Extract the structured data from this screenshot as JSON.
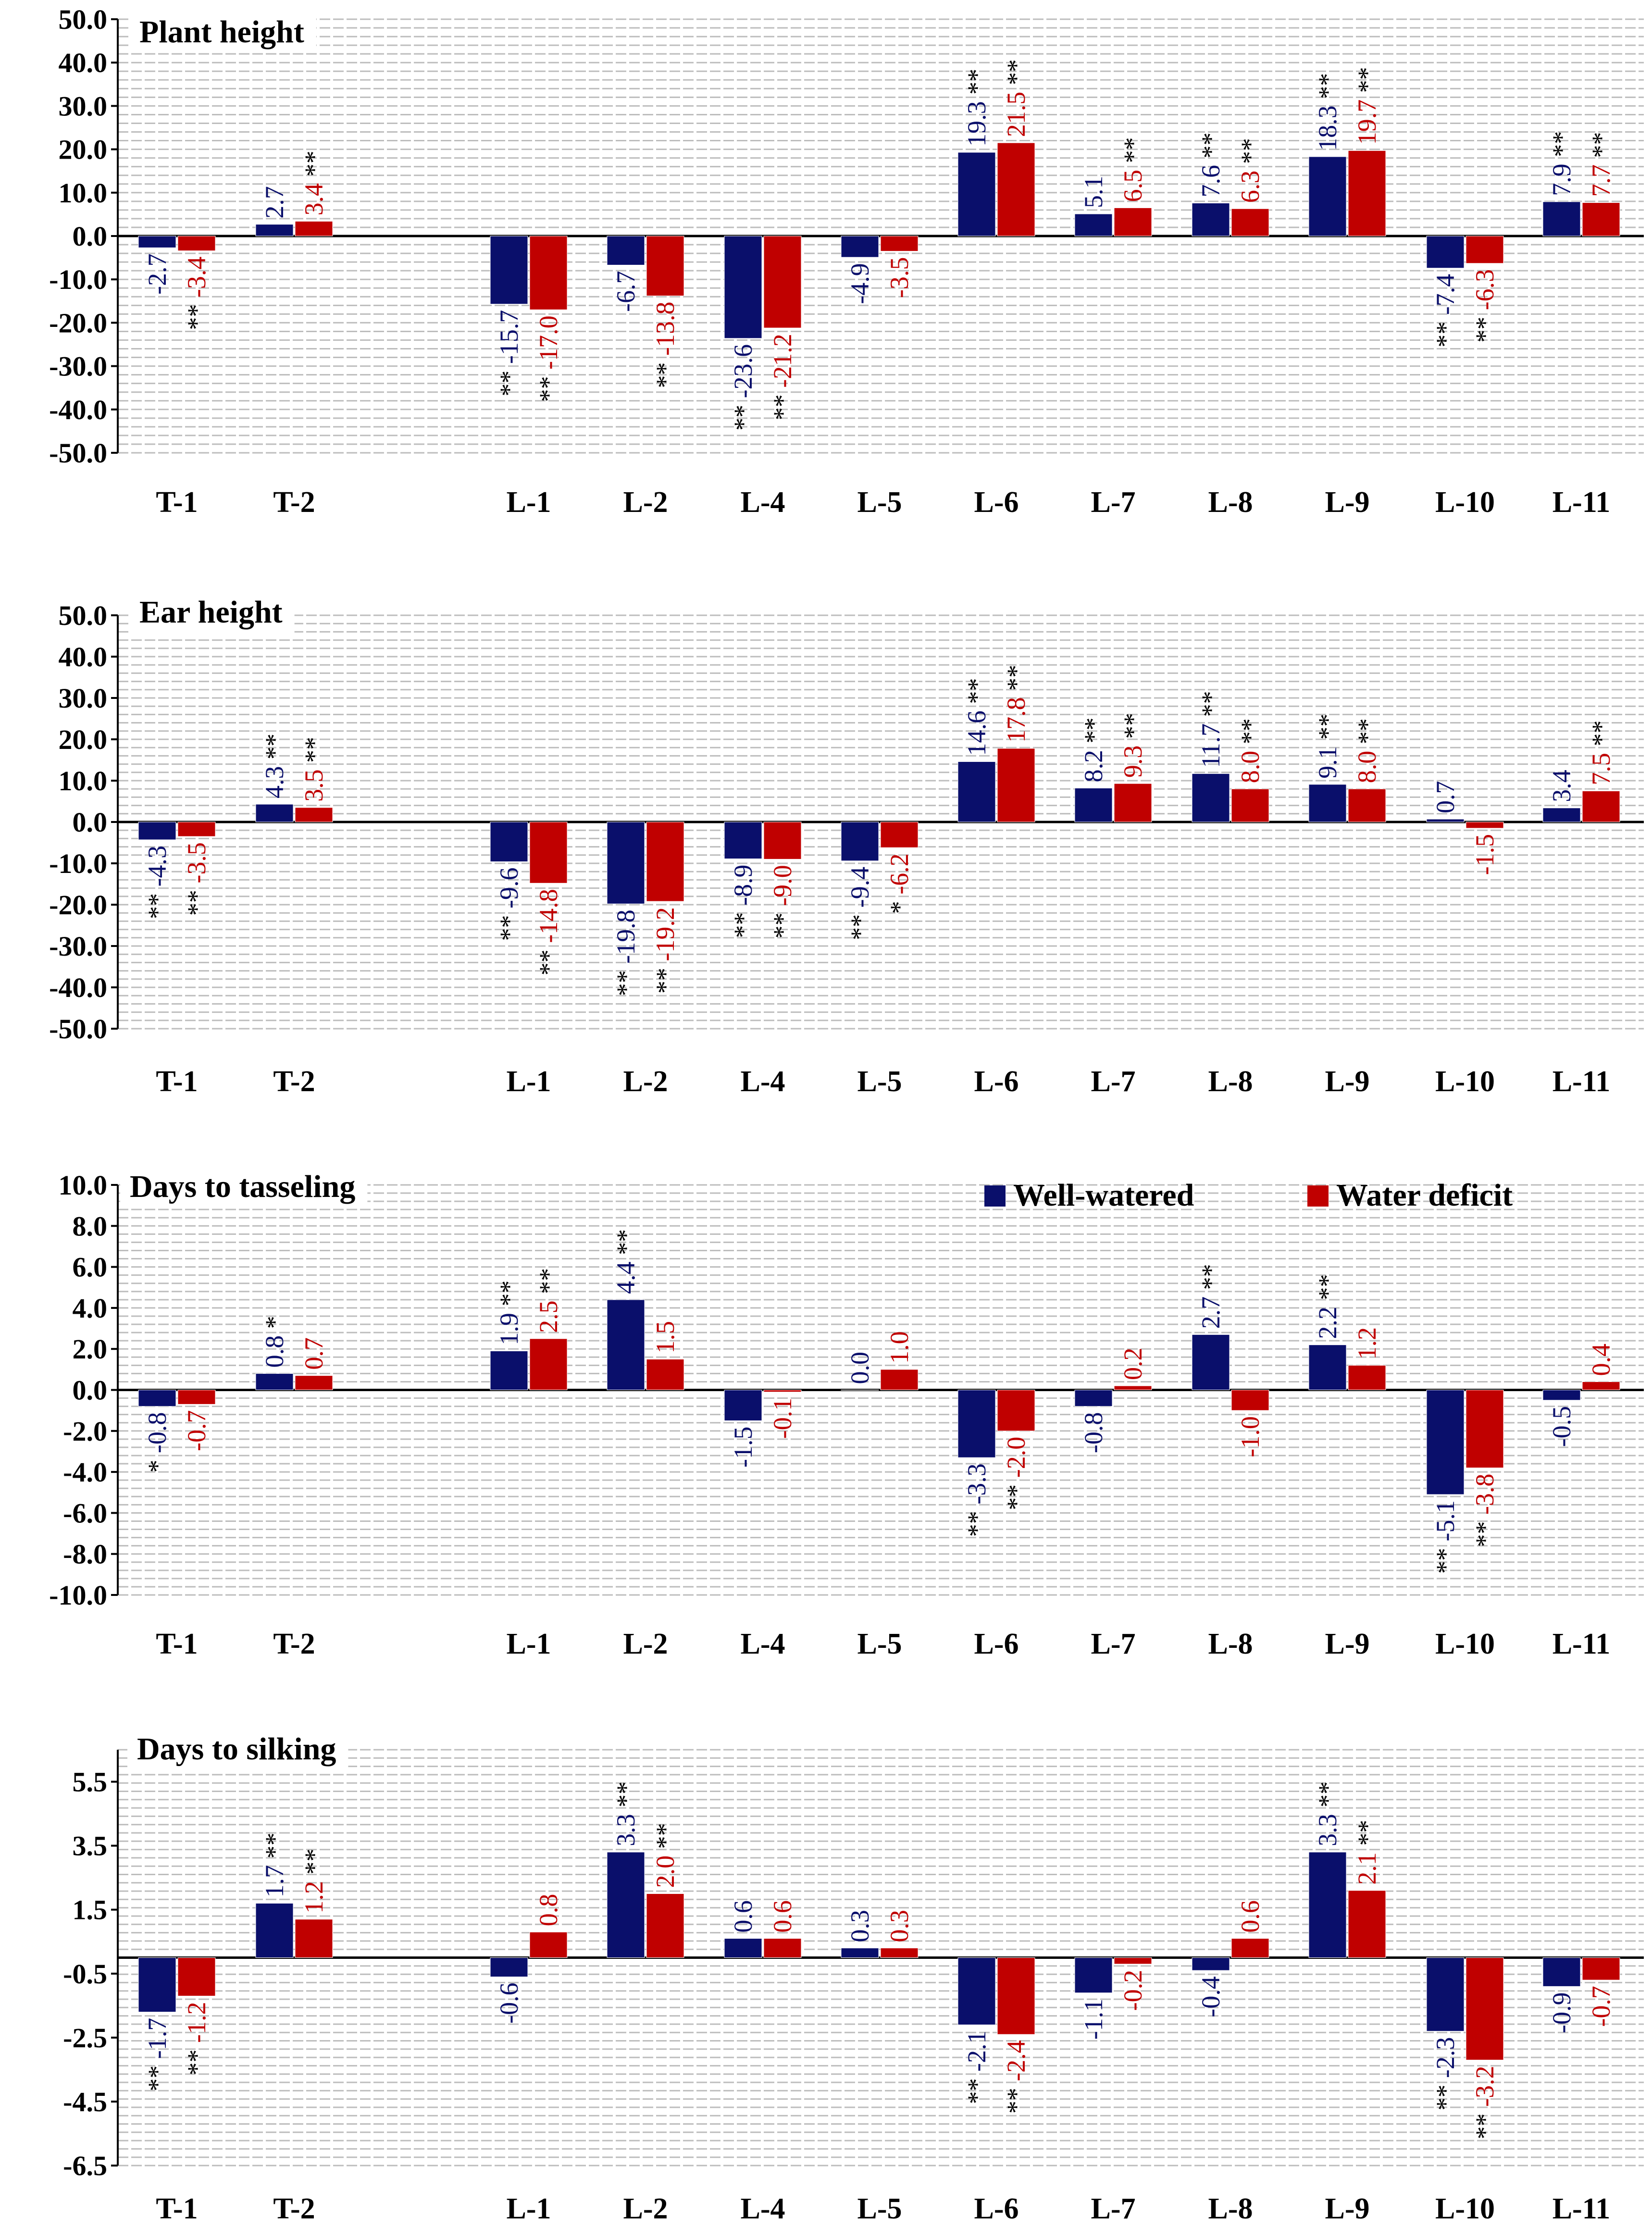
{
  "colors": {
    "well": "#0a0f6b",
    "deficit": "#c00000",
    "grid": "#bdbdbd",
    "axis": "#000000"
  },
  "legend": {
    "well_label": "Well-watered",
    "deficit_label": "Water deficit"
  },
  "chart_data": [
    {
      "type": "bar",
      "title": "Plant height",
      "categories": [
        "T-1",
        "T-2",
        "",
        "L-1",
        "L-2",
        "L-4",
        "L-5",
        "L-6",
        "L-7",
        "L-8",
        "L-9",
        "L-10",
        "L-11"
      ],
      "ylim": [
        -50,
        50
      ],
      "yticks": [
        50,
        40,
        30,
        20,
        10,
        0,
        -10,
        -20,
        -30,
        -40,
        -50
      ],
      "ytick_labels": [
        "50.0",
        "40.0",
        "30.0",
        "20.0",
        "10.0",
        "0.0",
        "-10.0",
        "-20.0",
        "-30.0",
        "-40.0",
        "-50.0"
      ],
      "series": [
        {
          "name": "Well-watered",
          "values": [
            -2.7,
            2.7,
            null,
            -15.7,
            -6.7,
            -23.6,
            -4.9,
            19.3,
            5.1,
            7.6,
            18.3,
            -7.4,
            7.9
          ],
          "labels": [
            "-2.7",
            "2.7",
            "",
            "-15.7",
            "-6.7",
            "-23.6",
            "-4.9",
            "19.3",
            "5.1",
            "7.6",
            "18.3",
            "-7.4",
            "7.9"
          ],
          "sig": [
            "",
            "",
            "",
            "**",
            "",
            "**",
            "",
            "**",
            "",
            "**",
            "**",
            "**",
            "**"
          ]
        },
        {
          "name": "Water deficit",
          "values": [
            -3.4,
            3.4,
            null,
            -17.0,
            -13.8,
            -21.2,
            -3.5,
            21.5,
            6.5,
            6.3,
            19.7,
            -6.3,
            7.7
          ],
          "labels": [
            "-3.4",
            "3.4",
            "",
            "-17.0",
            "-13.8",
            "-21.2",
            "-3.5",
            "21.5",
            "6.5",
            "6.3",
            "19.7",
            "-6.3",
            "7.7"
          ],
          "sig": [
            "**",
            "**",
            "",
            "**",
            "**",
            "**",
            "",
            "**",
            "**",
            "**",
            "**",
            "**",
            "**"
          ]
        }
      ]
    },
    {
      "type": "bar",
      "title": "Ear height",
      "categories": [
        "T-1",
        "T-2",
        "",
        "L-1",
        "L-2",
        "L-4",
        "L-5",
        "L-6",
        "L-7",
        "L-8",
        "L-9",
        "L-10",
        "L-11"
      ],
      "ylim": [
        -50,
        50
      ],
      "yticks": [
        50,
        40,
        30,
        20,
        10,
        0,
        -10,
        -20,
        -30,
        -40,
        -50
      ],
      "ytick_labels": [
        "50.0",
        "40.0",
        "30.0",
        "20.0",
        "10.0",
        "0.0",
        "-10.0",
        "-20.0",
        "-30.0",
        "-40.0",
        "-50.0"
      ],
      "series": [
        {
          "name": "Well-watered",
          "values": [
            -4.3,
            4.3,
            null,
            -9.6,
            -19.8,
            -8.9,
            -9.4,
            14.6,
            8.2,
            11.7,
            9.1,
            0.7,
            3.4
          ],
          "labels": [
            "-4.3",
            "4.3",
            "",
            "-9.6",
            "-19.8",
            "-8.9",
            "-9.4",
            "14.6",
            "8.2",
            "11.7",
            "9.1",
            "0.7",
            "3.4"
          ],
          "sig": [
            "**",
            "**",
            "",
            "**",
            "**",
            "**",
            "**",
            "**",
            "**",
            "**",
            "**",
            "",
            ""
          ]
        },
        {
          "name": "Water deficit",
          "values": [
            -3.5,
            3.5,
            null,
            -14.8,
            -19.2,
            -9.0,
            -6.2,
            17.8,
            9.3,
            8.0,
            8.0,
            -1.5,
            7.5
          ],
          "labels": [
            "-3.5",
            "3.5",
            "",
            "-14.8",
            "-19.2",
            "-9.0",
            "-6.2",
            "17.8",
            "9.3",
            "8.0",
            "8.0",
            "-1.5",
            "7.5"
          ],
          "sig": [
            "**",
            "**",
            "",
            "**",
            "**",
            "**",
            "*",
            "**",
            "**",
            "**",
            "**",
            "",
            "**"
          ]
        }
      ]
    },
    {
      "type": "bar",
      "title": "Days to tasseling",
      "categories": [
        "T-1",
        "T-2",
        "",
        "L-1",
        "L-2",
        "L-4",
        "L-5",
        "L-6",
        "L-7",
        "L-8",
        "L-9",
        "L-10",
        "L-11"
      ],
      "ylim": [
        -10,
        10
      ],
      "yticks": [
        10,
        8,
        6,
        4,
        2,
        0,
        -2,
        -4,
        -6,
        -8,
        -10
      ],
      "ytick_labels": [
        "10.0",
        "8.0",
        "6.0",
        "4.0",
        "2.0",
        "0.0",
        "-2.0",
        "-4.0",
        "-6.0",
        "-8.0",
        "-10.0"
      ],
      "legend": true,
      "series": [
        {
          "name": "Well-watered",
          "values": [
            -0.8,
            0.8,
            null,
            1.9,
            4.4,
            -1.5,
            0.0,
            -3.3,
            -0.8,
            2.7,
            2.2,
            -5.1,
            -0.5
          ],
          "labels": [
            "-0.8",
            "0.8",
            "",
            "1.9",
            "4.4",
            "-1.5",
            "0.0",
            "-3.3",
            "-0.8",
            "2.7",
            "2.2",
            "-5.1",
            "-0.5"
          ],
          "sig": [
            "*",
            "*",
            "",
            "**",
            "**",
            "",
            "",
            "**",
            "",
            "**",
            "**",
            "**",
            ""
          ]
        },
        {
          "name": "Water deficit",
          "values": [
            -0.7,
            0.7,
            null,
            2.5,
            1.5,
            -0.1,
            1.0,
            -2.0,
            0.2,
            -1.0,
            1.2,
            -3.8,
            0.4
          ],
          "labels": [
            "-0.7",
            "0.7",
            "",
            "2.5",
            "1.5",
            "-0.1",
            "1.0",
            "-2.0",
            "0.2",
            "-1.0",
            "1.2",
            "-3.8",
            "0.4"
          ],
          "sig": [
            "",
            "",
            "",
            "**",
            "",
            "",
            "",
            "**",
            "",
            "",
            "",
            "**",
            ""
          ]
        }
      ]
    },
    {
      "type": "bar",
      "title": "Days to silking",
      "categories": [
        "T-1",
        "T-2",
        "",
        "L-1",
        "L-2",
        "L-4",
        "L-5",
        "L-6",
        "L-7",
        "L-8",
        "L-9",
        "L-10",
        "L-11"
      ],
      "ylim": [
        -6.5,
        6.5
      ],
      "yticks": [
        5.5,
        3.5,
        1.5,
        -0.5,
        -2.5,
        -4.5,
        -6.5
      ],
      "ytick_labels": [
        "5.5",
        "3.5",
        "1.5",
        "-0.5",
        "-2.5",
        "-4.5",
        "-6.5"
      ],
      "series": [
        {
          "name": "Well-watered",
          "values": [
            -1.7,
            1.7,
            null,
            -0.6,
            3.3,
            0.6,
            0.3,
            -2.1,
            -1.1,
            -0.4,
            3.3,
            -2.3,
            -0.9
          ],
          "labels": [
            "-1.7",
            "1.7",
            "",
            "-0.6",
            "3.3",
            "0.6",
            "0.3",
            "-2.1",
            "-1.1",
            "-0.4",
            "3.3",
            "-2.3",
            "-0.9"
          ],
          "sig": [
            "**",
            "**",
            "",
            "",
            "**",
            "",
            "",
            "**",
            "",
            "",
            "**",
            "**",
            ""
          ]
        },
        {
          "name": "Water deficit",
          "values": [
            -1.2,
            1.2,
            null,
            0.8,
            2.0,
            0.6,
            0.3,
            -2.4,
            -0.2,
            0.6,
            2.1,
            -3.2,
            -0.7
          ],
          "labels": [
            "-1.2",
            "1.2",
            "",
            "0.8",
            "2.0",
            "0.6",
            "0.3",
            "-2.4",
            "-0.2",
            "0.6",
            "2.1",
            "-3.2",
            "-0.7"
          ],
          "sig": [
            "**",
            "**",
            "",
            "",
            "**",
            "",
            "",
            "**",
            "",
            "",
            "**",
            "**",
            ""
          ]
        }
      ]
    }
  ]
}
